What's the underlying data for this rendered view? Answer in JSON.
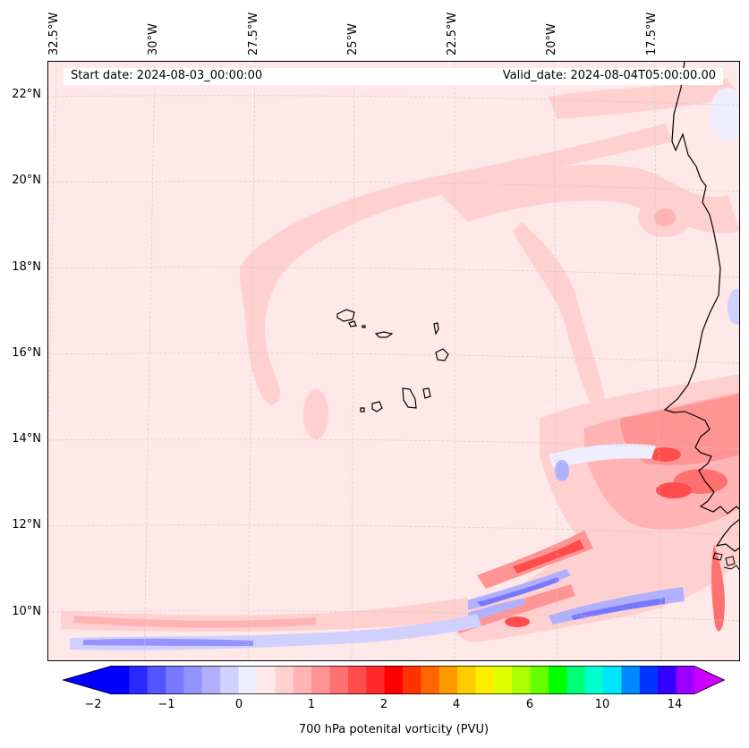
{
  "map": {
    "start_label": "Start date: 2024-08-03_00:00:00",
    "valid_label": "Valid_date: 2024-08-04T05:00:00.00",
    "lon_labels": [
      "32.5°W",
      "30°W",
      "27.5°W",
      "25°W",
      "22.5°W",
      "20°W",
      "17.5°W"
    ],
    "lat_labels": [
      "22°N",
      "20°N",
      "18°N",
      "16°N",
      "14°N",
      "12°N",
      "10°N"
    ],
    "islands": "Cape Verde",
    "coastline": "West Africa"
  },
  "colorbar": {
    "label": "700 hPa potenital vorticity (PVU)",
    "tick_labels": [
      "−2",
      "−1",
      "0",
      "1",
      "2",
      "4",
      "6",
      "10",
      "14"
    ],
    "colors": [
      "#0000ff",
      "#2a2aff",
      "#5555ff",
      "#7777ff",
      "#9494ff",
      "#b0b0ff",
      "#d0d0ff",
      "#eeeeff",
      "#ffe8e8",
      "#ffd0d0",
      "#ffb3b3",
      "#ff9494",
      "#ff7070",
      "#ff4c4c",
      "#ff2a2a",
      "#ff0000",
      "#ff3300",
      "#ff6600",
      "#ff9900",
      "#ffcc00",
      "#ffee00",
      "#ddff00",
      "#aaff00",
      "#66ff00",
      "#00ff00",
      "#00ff77",
      "#00ffcc",
      "#00e5ff",
      "#0088ff",
      "#0033ff",
      "#3300ff",
      "#9900ff"
    ],
    "under_color": "#0000ff",
    "over_color": "#cc00ff"
  }
}
